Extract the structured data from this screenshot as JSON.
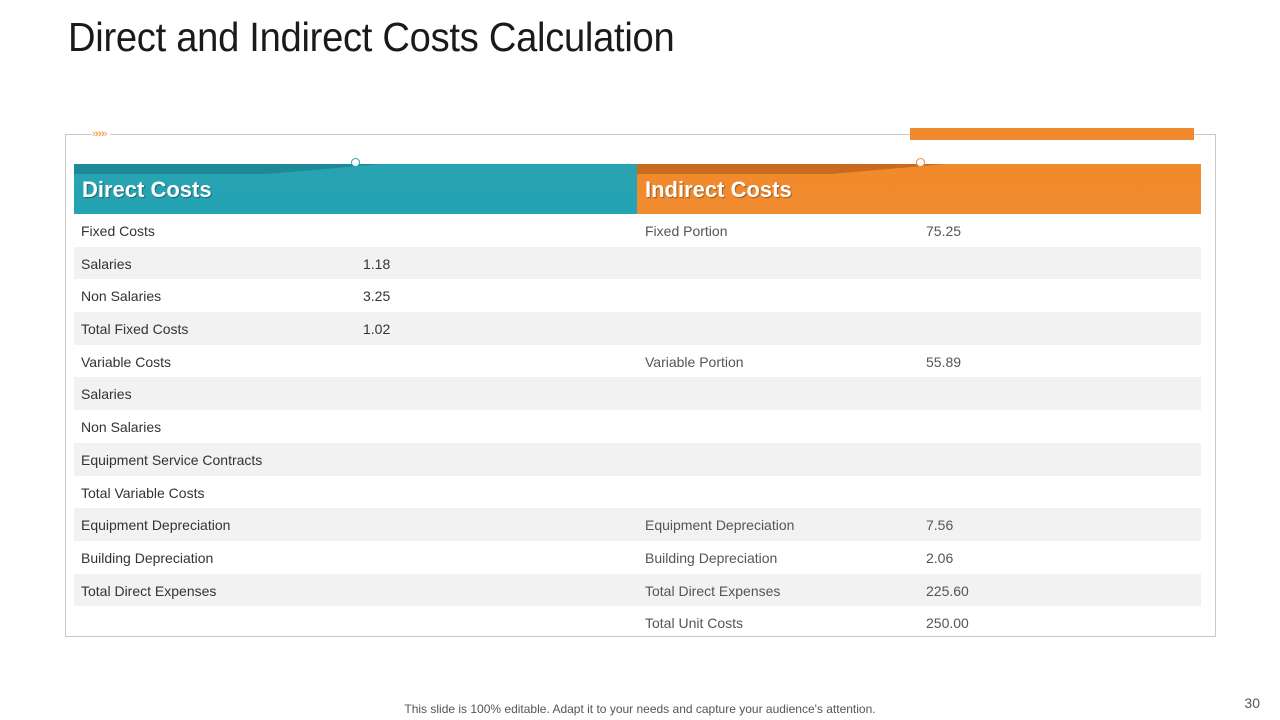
{
  "title": "Direct and Indirect Costs Calculation",
  "chevrons": "»»»»",
  "headers": {
    "direct": "Direct Costs",
    "indirect": "Indirect Costs"
  },
  "rows": [
    {
      "c1": "Fixed Costs",
      "c2": "",
      "c3": "Fixed Portion",
      "c4": "75.25"
    },
    {
      "c1": "Salaries",
      "c2": "1.18",
      "c3": "",
      "c4": ""
    },
    {
      "c1": "Non Salaries",
      "c2": "3.25",
      "c3": "",
      "c4": ""
    },
    {
      "c1": "Total  Fixed Costs",
      "c2": "1.02",
      "c3": "",
      "c4": ""
    },
    {
      "c1": "Variable Costs",
      "c2": "",
      "c3": "Variable Portion",
      "c4": "55.89"
    },
    {
      "c1": "Salaries",
      "c2": "",
      "c3": "",
      "c4": ""
    },
    {
      "c1": "Non Salaries",
      "c2": "",
      "c3": "",
      "c4": ""
    },
    {
      "c1": "Equipment Service Contracts",
      "c2": "",
      "c3": "",
      "c4": ""
    },
    {
      "c1": "Total  Variable Costs",
      "c2": "",
      "c3": "",
      "c4": ""
    },
    {
      "c1": "Equipment Depreciation",
      "c2": "",
      "c3": "Equipment Depreciation",
      "c4": "7.56"
    },
    {
      "c1": "Building Depreciation",
      "c2": "",
      "c3": "Building Depreciation",
      "c4": "2.06"
    },
    {
      "c1": "Total  Direct Expenses",
      "c2": "",
      "c3": "Total  Direct Expenses",
      "c4": "225.60"
    },
    {
      "c1": "",
      "c2": "",
      "c3": "Total  Unit Costs",
      "c4": "250.00"
    }
  ],
  "footer": "This slide is 100% editable. Adapt it to your needs and capture your audience's attention.",
  "page_number": "30",
  "colors": {
    "teal": "#23a3b3",
    "orange": "#ef8a2e",
    "row_alt": "#f2f2f2"
  }
}
